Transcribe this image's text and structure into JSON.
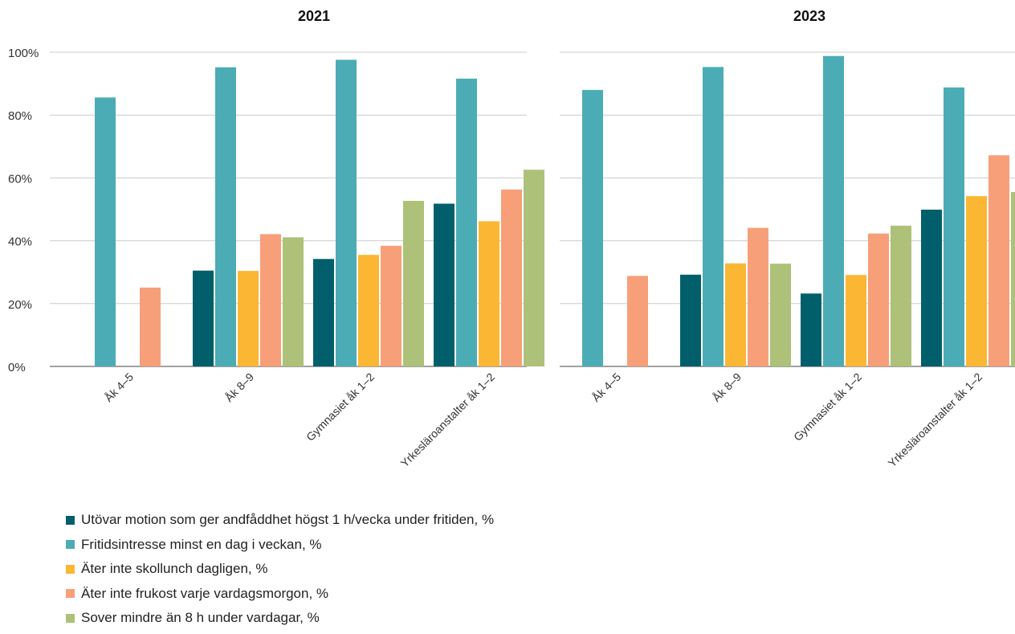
{
  "chart_data": [
    {
      "type": "bar",
      "title": "2021",
      "categories": [
        "Åk 4–5",
        "Åk 8–9",
        "Gymnasiet åk 1–2",
        "Yrkesläroanstalter åk 1–2"
      ],
      "ylim": [
        0,
        100
      ],
      "yticks": [
        "0%",
        "20%",
        "40%",
        "60%",
        "80%",
        "100%"
      ],
      "grid": true,
      "series": [
        {
          "name": "Utövar motion som ger andfåddhet högst 1 h/vecka under fritiden, %",
          "color": "#005f6b",
          "values": [
            null,
            30.5,
            34.2,
            51.8
          ]
        },
        {
          "name": "Fritidsintresse minst en dag i veckan, %",
          "color": "#4cacb5",
          "values": [
            85.6,
            95.2,
            97.6,
            91.6
          ]
        },
        {
          "name": "Äter inte skollunch dagligen, %",
          "color": "#fbb734",
          "values": [
            null,
            30.4,
            35.5,
            46.2
          ]
        },
        {
          "name": "Äter inte frukost varje vardagsmorgon, %",
          "color": "#f79f79",
          "values": [
            25.1,
            42.1,
            38.4,
            56.3
          ]
        },
        {
          "name": "Sover mindre än 8 h under vardagar, %",
          "color": "#adc178",
          "values": [
            null,
            41.1,
            52.7,
            62.6
          ]
        }
      ]
    },
    {
      "type": "bar",
      "title": "2023",
      "categories": [
        "Åk 4–5",
        "Åk 8–9",
        "Gymnasiet åk 1–2",
        "Yrkesläroanstalter åk 1–2"
      ],
      "ylim": [
        0,
        100
      ],
      "grid": true,
      "series": [
        {
          "name": "Utövar motion som ger andfåddhet högst 1 h/vecka under fritiden, %",
          "color": "#005f6b",
          "values": [
            null,
            29.2,
            23.2,
            49.9
          ]
        },
        {
          "name": "Fritidsintresse minst en dag i veckan, %",
          "color": "#4cacb5",
          "values": [
            88.0,
            95.3,
            98.8,
            88.8
          ]
        },
        {
          "name": "Äter inte skollunch dagligen, %",
          "color": "#fbb734",
          "values": [
            null,
            32.8,
            29.1,
            54.2
          ]
        },
        {
          "name": "Äter inte frukost varje vardagsmorgon, %",
          "color": "#f79f79",
          "values": [
            28.8,
            44.1,
            42.3,
            67.2
          ]
        },
        {
          "name": "Sover mindre än 8 h under vardagar, %",
          "color": "#adc178",
          "values": [
            null,
            32.7,
            44.8,
            55.5
          ]
        }
      ]
    }
  ],
  "legend": [
    {
      "label": "Utövar motion som ger andfåddhet högst 1 h/vecka under fritiden, %",
      "color": "#005f6b"
    },
    {
      "label": "Fritidsintresse minst en dag i veckan, %",
      "color": "#4cacb5"
    },
    {
      "label": "Äter inte skollunch dagligen, %",
      "color": "#fbb734"
    },
    {
      "label": "Äter inte frukost varje vardagsmorgon, %",
      "color": "#f79f79"
    },
    {
      "label": "Sover mindre än 8 h under vardagar, %",
      "color": "#adc178"
    }
  ]
}
